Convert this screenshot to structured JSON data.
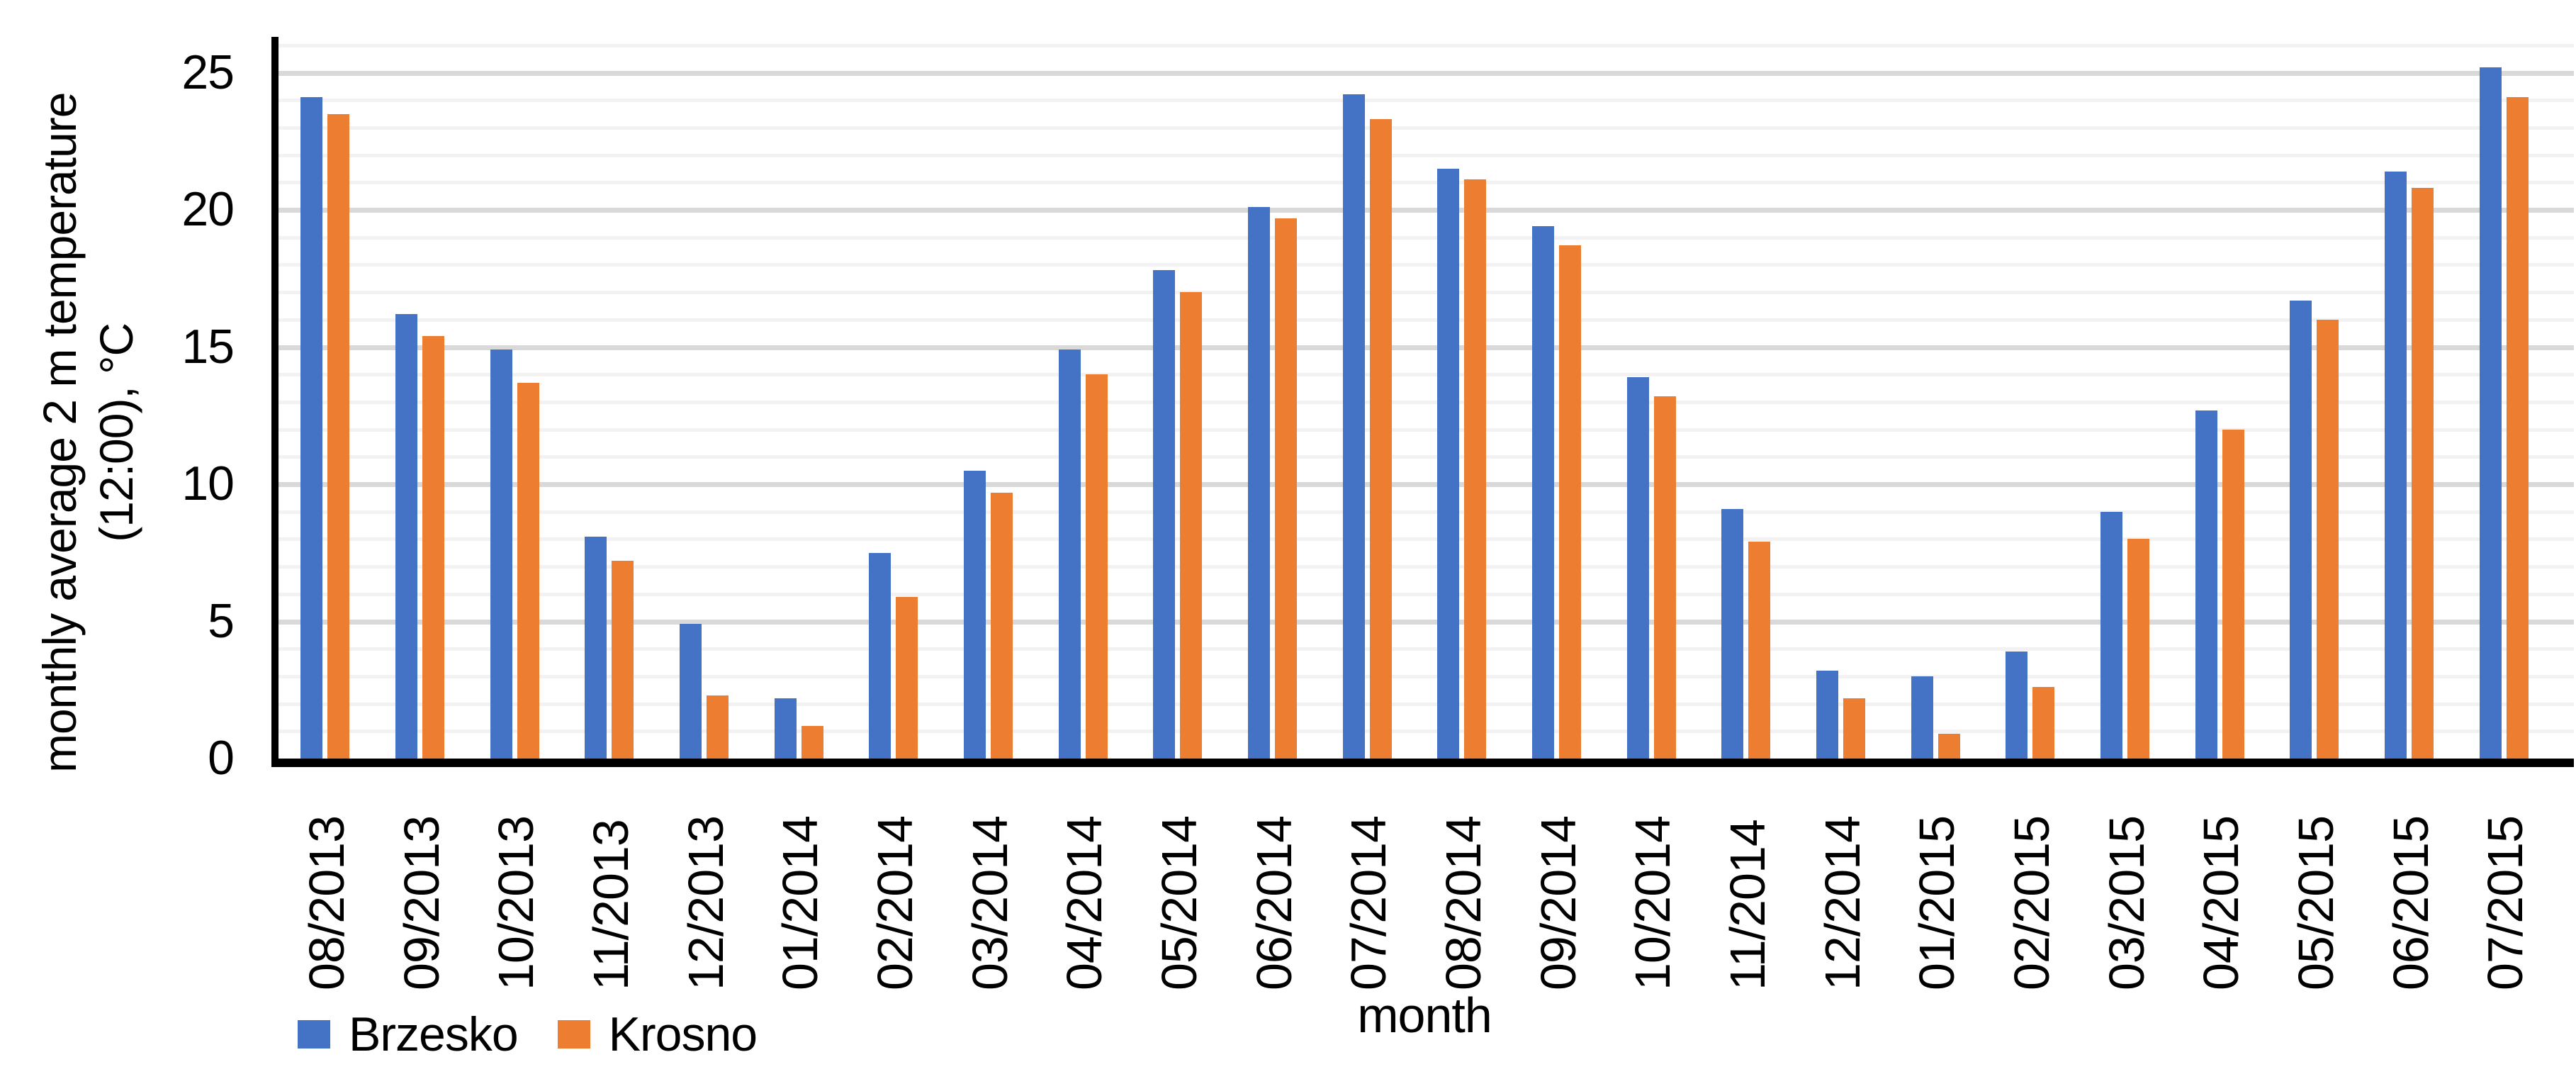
{
  "chart_data": {
    "type": "bar",
    "title": "",
    "xlabel": "month",
    "ylabel": "monthly average 2 m temperature (12:00), °C",
    "ylabel_lines": [
      "monthly average 2 m temperature",
      "(12:00), °C"
    ],
    "categories": [
      "08/2013",
      "09/2013",
      "10/2013",
      "11/2013",
      "12/2013",
      "01/2014",
      "02/2014",
      "03/2014",
      "04/2014",
      "05/2014",
      "06/2014",
      "07/2014",
      "08/2014",
      "09/2014",
      "10/2014",
      "11/2014",
      "12/2014",
      "01/2015",
      "02/2015",
      "03/2015",
      "04/2015",
      "05/2015",
      "06/2015",
      "07/2015"
    ],
    "series": [
      {
        "name": "Brzesko",
        "color": "#4472C4",
        "values": [
          24.1,
          16.2,
          14.9,
          8.1,
          4.9,
          2.2,
          7.5,
          10.5,
          14.9,
          17.8,
          20.1,
          24.2,
          21.5,
          19.4,
          13.9,
          9.1,
          3.2,
          3.0,
          3.9,
          9.0,
          12.7,
          16.7,
          21.4,
          25.2
        ]
      },
      {
        "name": "Krosno",
        "color": "#ED7D31",
        "values": [
          23.5,
          15.4,
          13.7,
          7.2,
          2.3,
          1.2,
          5.9,
          9.7,
          14.0,
          17.0,
          19.7,
          23.3,
          21.1,
          18.7,
          13.2,
          7.9,
          2.2,
          0.9,
          2.6,
          8.0,
          12.0,
          16.0,
          20.8,
          24.1
        ]
      }
    ],
    "y_axis": {
      "min": 0,
      "max": 26.2,
      "major_tick_step": 5,
      "minor_gridline_step": 1,
      "tick_labels": [
        "0",
        "5",
        "10",
        "15",
        "20",
        "25"
      ]
    },
    "grid": {
      "major_color": "#d9d9d9",
      "minor_color": "#f2f2f2",
      "axis_color": "#000000"
    },
    "legend_position": "bottom-left"
  }
}
